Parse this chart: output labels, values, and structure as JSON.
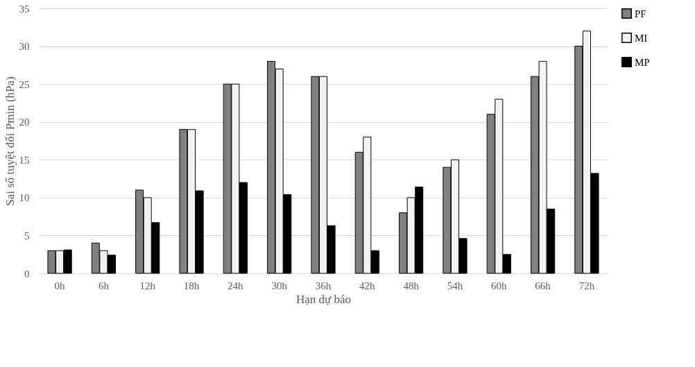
{
  "chart_data": {
    "type": "bar",
    "xlabel": "Hạn dự báo",
    "ylabel": "Sai số tuyệt đối Pmin (hPa)",
    "categories": [
      "0h",
      "6h",
      "12h",
      "18h",
      "24h",
      "30h",
      "36h",
      "42h",
      "48h",
      "54h",
      "60h",
      "66h",
      "72h"
    ],
    "series": [
      {
        "name": "PF",
        "color": "#808080",
        "values": [
          3,
          4,
          11,
          19,
          25,
          28,
          26,
          16,
          8,
          14,
          21,
          26,
          30
        ]
      },
      {
        "name": "MI",
        "color": "#f2f2f2",
        "values": [
          3,
          3,
          10,
          19,
          25,
          27,
          26,
          18,
          10,
          15,
          23,
          28,
          32
        ]
      },
      {
        "name": "MP",
        "color": "#000000",
        "values": [
          3.1,
          2.4,
          6.7,
          10.9,
          12.0,
          10.4,
          6.3,
          3.0,
          11.4,
          4.6,
          2.5,
          8.5,
          13.2
        ]
      }
    ],
    "ylim": [
      0,
      35
    ],
    "yticks": [
      0,
      5,
      10,
      15,
      20,
      25,
      30,
      35
    ],
    "grid": "y",
    "legend": "right"
  }
}
